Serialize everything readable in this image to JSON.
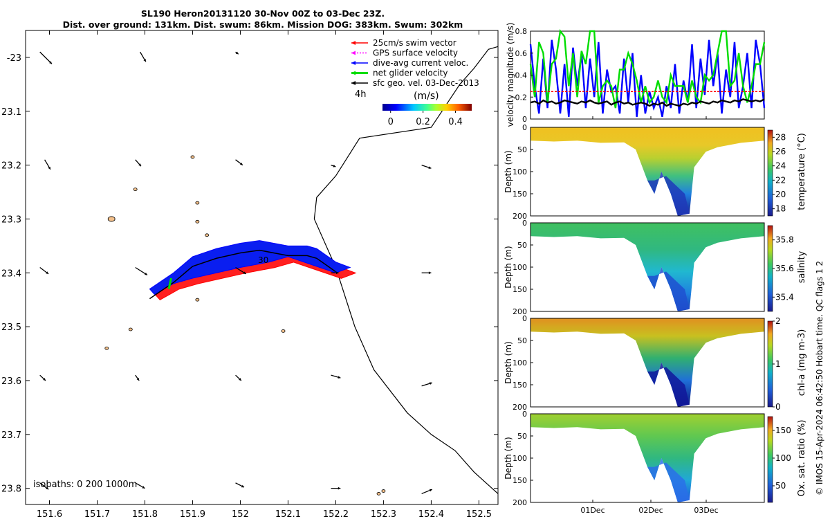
{
  "title": {
    "line1": "SL190 Heron20131120 30-Nov 00Z to 03-Dec 23Z.",
    "line2": "Dist. over ground: 131km. Dist. swum: 86km. Mission DOG: 383km. Swum: 302km"
  },
  "credit": "© IMOS 15-Apr-2024 06:42:50 Hobart time. QC flags 1 2",
  "chart_data": [
    {
      "type": "map",
      "xlim": [
        151.55,
        152.54
      ],
      "ylim": [
        -23.83,
        -22.95
      ],
      "x_ticks": [
        "151.6",
        "151.7",
        "151.8",
        "151.9",
        "152",
        "152.1",
        "152.2",
        "152.3",
        "152.4",
        "152.5"
      ],
      "x_tick_values": [
        151.6,
        151.7,
        151.8,
        151.9,
        152.0,
        152.1,
        152.2,
        152.3,
        152.4,
        152.5
      ],
      "y_ticks": [
        "-23",
        "23.1",
        "23.2",
        "23.3",
        "23.4",
        "23.5",
        "23.6",
        "23.7",
        "23.8"
      ],
      "y_tick_values": [
        -23.0,
        -23.1,
        -23.2,
        -23.3,
        -23.4,
        -23.5,
        -23.6,
        -23.7,
        -23.8
      ],
      "legend": [
        {
          "label": "25cm/s swim vector",
          "color": "#ff0000"
        },
        {
          "label": "GPS surface velocity",
          "color": "#ff00ff"
        },
        {
          "label": "dive-avg current veloc.",
          "color": "#0000ff"
        },
        {
          "label": "net glider velocity",
          "color": "#00dd00"
        },
        {
          "label": "sfc geo. vel. 03-Dec-2013",
          "color": "#000000"
        }
      ],
      "scale_label": "4h",
      "colorbar": {
        "title": "(m/s)",
        "ticks": [
          "0",
          "0.2",
          "0.4"
        ],
        "tick_values": [
          0,
          0.2,
          0.4
        ],
        "range": [
          -0.05,
          0.5
        ]
      },
      "isobaths_label": "isobaths: 0   200   1000m",
      "track_label": "30",
      "isobath_1000m": [
        [
          152.54,
          -22.98
        ],
        [
          152.52,
          -22.985
        ],
        [
          152.49,
          -23.02
        ],
        [
          152.46,
          -23.05
        ],
        [
          152.4,
          -23.13
        ],
        [
          152.25,
          -23.15
        ],
        [
          152.2,
          -23.22
        ],
        [
          152.16,
          -23.26
        ],
        [
          152.155,
          -23.3
        ],
        [
          152.2,
          -23.39
        ],
        [
          152.24,
          -23.5
        ],
        [
          152.28,
          -23.58
        ],
        [
          152.35,
          -23.66
        ],
        [
          152.4,
          -23.7
        ],
        [
          152.45,
          -23.73
        ],
        [
          152.49,
          -23.77
        ],
        [
          152.54,
          -23.81
        ]
      ],
      "glider_patch": [
        [
          151.81,
          -23.43
        ],
        [
          151.86,
          -23.4
        ],
        [
          151.9,
          -23.37
        ],
        [
          151.95,
          -23.355
        ],
        [
          152.0,
          -23.345
        ],
        [
          152.04,
          -23.34
        ],
        [
          152.07,
          -23.345
        ],
        [
          152.1,
          -23.35
        ],
        [
          152.14,
          -23.35
        ],
        [
          152.16,
          -23.355
        ],
        [
          152.2,
          -23.38
        ],
        [
          152.23,
          -23.39
        ],
        [
          152.2,
          -23.4
        ],
        [
          152.15,
          -23.385
        ],
        [
          152.1,
          -23.37
        ],
        [
          152.06,
          -23.38
        ],
        [
          152.0,
          -23.39
        ],
        [
          151.95,
          -23.4
        ],
        [
          151.9,
          -23.41
        ],
        [
          151.86,
          -23.42
        ],
        [
          151.82,
          -23.44
        ]
      ],
      "reef_outlines": [
        [
          151.73,
          -23.3
        ],
        [
          151.78,
          -23.245
        ],
        [
          151.91,
          -23.27
        ],
        [
          151.91,
          -23.305
        ],
        [
          151.91,
          -23.45
        ],
        [
          151.93,
          -23.33
        ],
        [
          151.72,
          -23.54
        ],
        [
          152.09,
          -23.508
        ],
        [
          152.29,
          -23.81
        ],
        [
          152.3,
          -23.805
        ],
        [
          151.77,
          -23.505
        ],
        [
          151.9,
          -23.185
        ]
      ],
      "velocity_arrows": [
        [
          151.58,
          -22.99,
          0.025,
          -0.022
        ],
        [
          151.79,
          -22.99,
          0.012,
          -0.018
        ],
        [
          151.99,
          -22.99,
          0.006,
          -0.004
        ],
        [
          151.59,
          -23.19,
          0.012,
          -0.018
        ],
        [
          151.78,
          -23.19,
          0.012,
          -0.012
        ],
        [
          151.99,
          -23.19,
          0.015,
          -0.01
        ],
        [
          152.19,
          -23.2,
          0.01,
          -0.003
        ],
        [
          152.38,
          -23.2,
          0.02,
          -0.006
        ],
        [
          151.58,
          -23.39,
          0.018,
          -0.012
        ],
        [
          151.78,
          -23.39,
          0.025,
          -0.014
        ],
        [
          151.99,
          -23.39,
          0.022,
          -0.012
        ],
        [
          152.19,
          -23.4,
          0.016,
          0.0
        ],
        [
          152.38,
          -23.4,
          0.02,
          0.0
        ],
        [
          151.58,
          -23.59,
          0.012,
          -0.01
        ],
        [
          151.78,
          -23.59,
          0.008,
          -0.01
        ],
        [
          151.99,
          -23.59,
          0.012,
          -0.01
        ],
        [
          152.19,
          -23.59,
          0.02,
          -0.005
        ],
        [
          152.38,
          -23.61,
          0.022,
          0.006
        ],
        [
          151.58,
          -23.79,
          0.018,
          -0.012
        ],
        [
          151.78,
          -23.79,
          0.02,
          -0.01
        ],
        [
          151.99,
          -23.79,
          0.018,
          -0.008
        ],
        [
          152.19,
          -23.8,
          0.02,
          0.0
        ],
        [
          152.38,
          -23.81,
          0.022,
          0.008
        ]
      ]
    },
    {
      "type": "line",
      "ylabel": "velocity magnitude (m/s)",
      "ylim": [
        0,
        0.8
      ],
      "y_ticks": [
        "0",
        "0.2",
        "0.4",
        "0.6",
        "0.8"
      ],
      "y_tick_values": [
        0,
        0.2,
        0.4,
        0.6,
        0.8
      ],
      "series": [
        {
          "color": "#0000ff",
          "values": [
            0.68,
            0.3,
            0.05,
            0.55,
            0.1,
            0.72,
            0.45,
            0.05,
            0.5,
            0.02,
            0.65,
            0.3,
            0.6,
            0.1,
            0.55,
            0.2,
            0.7,
            0.05,
            0.45,
            0.25,
            0.3,
            0.05,
            0.55,
            0.15,
            0.6,
            0.02,
            0.4,
            0.05,
            0.25,
            0.1,
            0.2,
            0.02,
            0.3,
            0.1,
            0.5,
            0.05,
            0.35,
            0.15,
            0.68,
            0.1,
            0.55,
            0.22,
            0.72,
            0.3,
            0.6,
            0.05,
            0.45,
            0.2,
            0.7,
            0.1,
            0.3,
            0.6,
            0.1,
            0.72,
            0.5,
            0.1
          ]
        },
        {
          "color": "#00dd00",
          "values": [
            0.5,
            0.2,
            0.7,
            0.6,
            0.15,
            0.5,
            0.55,
            0.8,
            0.75,
            0.3,
            0.6,
            0.2,
            0.62,
            0.5,
            0.8,
            0.8,
            0.15,
            0.3,
            0.35,
            0.3,
            0.1,
            0.45,
            0.45,
            0.6,
            0.5,
            0.35,
            0.15,
            0.3,
            0.15,
            0.2,
            0.35,
            0.2,
            0.15,
            0.4,
            0.3,
            0.3,
            0.3,
            0.15,
            0.35,
            0.2,
            0.15,
            0.4,
            0.35,
            0.4,
            0.6,
            0.8,
            0.8,
            0.3,
            0.35,
            0.6,
            0.3,
            0.15,
            0.3,
            0.5,
            0.5,
            0.7
          ]
        },
        {
          "color": "#ff0000",
          "dashed": true,
          "values": [
            0.25,
            0.25,
            0.25,
            0.25,
            0.25,
            0.25,
            0.25,
            0.25,
            0.25,
            0.25,
            0.25,
            0.25,
            0.25,
            0.25,
            0.25,
            0.25,
            0.25,
            0.25,
            0.25,
            0.25,
            0.25,
            0.25,
            0.25,
            0.25,
            0.25,
            0.25,
            0.25,
            0.25,
            0.25,
            0.25,
            0.25,
            0.25,
            0.25,
            0.25,
            0.25,
            0.25,
            0.25,
            0.25,
            0.25,
            0.25,
            0.25,
            0.25,
            0.25,
            0.25,
            0.25,
            0.25,
            0.25,
            0.25,
            0.25,
            0.25,
            0.25,
            0.25,
            0.25,
            0.25,
            0.25,
            0.25
          ]
        },
        {
          "color": "#000000",
          "values": [
            0.15,
            0.16,
            0.14,
            0.17,
            0.15,
            0.16,
            0.14,
            0.15,
            0.17,
            0.16,
            0.15,
            0.14,
            0.16,
            0.15,
            0.17,
            0.15,
            0.14,
            0.15,
            0.16,
            0.13,
            0.15,
            0.16,
            0.14,
            0.15,
            0.13,
            0.14,
            0.15,
            0.14,
            0.12,
            0.14,
            0.13,
            0.15,
            0.12,
            0.14,
            0.13,
            0.12,
            0.14,
            0.13,
            0.15,
            0.14,
            0.16,
            0.15,
            0.14,
            0.16,
            0.15,
            0.17,
            0.16,
            0.15,
            0.17,
            0.16,
            0.18,
            0.17,
            0.16,
            0.17,
            0.16,
            0.18
          ]
        }
      ]
    },
    {
      "type": "section",
      "ylabel": "Depth (m)",
      "ylim": [
        200,
        0
      ],
      "y_ticks": [
        "0",
        "50",
        "100",
        "150",
        "200"
      ],
      "y_tick_values": [
        0,
        50,
        100,
        150,
        200
      ],
      "colorbar": {
        "label": "temperature (°C)",
        "ticks": [
          "28",
          "26",
          "24",
          "22",
          "20",
          "18"
        ],
        "tick_values": [
          28,
          26,
          24,
          22,
          20,
          18
        ],
        "range": [
          17,
          29
        ]
      }
    },
    {
      "type": "section",
      "ylabel": "Depth (m)",
      "ylim": [
        200,
        0
      ],
      "y_ticks": [
        "0",
        "50",
        "100",
        "150",
        "200"
      ],
      "y_tick_values": [
        0,
        50,
        100,
        150,
        200
      ],
      "colorbar": {
        "label": "salinity",
        "ticks": [
          "35.8",
          "35.6",
          "35.4"
        ],
        "tick_values": [
          35.8,
          35.6,
          35.4
        ],
        "range": [
          35.3,
          35.9
        ]
      }
    },
    {
      "type": "section",
      "ylabel": "Depth (m)",
      "ylim": [
        200,
        0
      ],
      "y_ticks": [
        "0",
        "50",
        "100",
        "150",
        "200"
      ],
      "y_tick_values": [
        0,
        50,
        100,
        150,
        200
      ],
      "colorbar": {
        "label": "chl-a (mg m-3)",
        "ticks": [
          "2",
          "1",
          "0"
        ],
        "tick_values": [
          2,
          1,
          0
        ],
        "range": [
          0,
          2
        ]
      }
    },
    {
      "type": "section",
      "ylabel": "Depth (m)",
      "ylim": [
        200,
        0
      ],
      "y_ticks": [
        "0",
        "50",
        "100",
        "150",
        "200"
      ],
      "y_tick_values": [
        0,
        50,
        100,
        150,
        200
      ],
      "x_ticks": [
        "01Dec",
        "02Dec",
        "03Dec"
      ],
      "colorbar": {
        "label": "Ox. sat. ratio (%)",
        "ticks": [
          "150",
          "100",
          "50"
        ],
        "tick_values": [
          150,
          100,
          50
        ],
        "range": [
          20,
          175
        ]
      }
    }
  ]
}
